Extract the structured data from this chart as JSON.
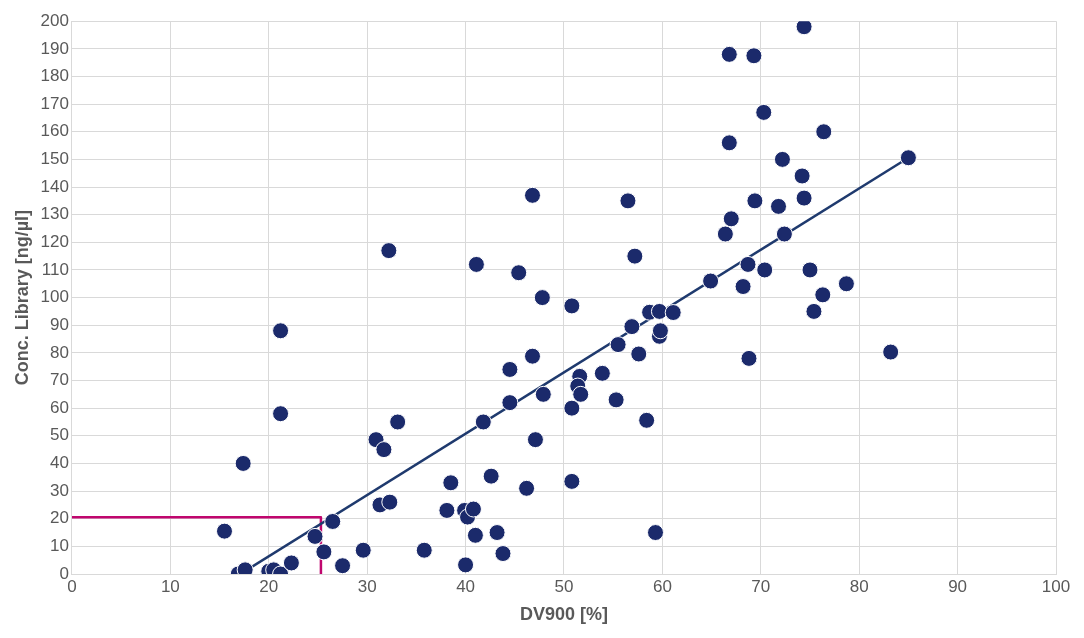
{
  "chart_data": {
    "type": "scatter",
    "xlabel": "DV900 [%]",
    "ylabel": "Conc. Library [ng/µl]",
    "xlim": [
      0,
      100
    ],
    "xticks": [
      0,
      10,
      20,
      30,
      40,
      50,
      60,
      70,
      80,
      90,
      100
    ],
    "ylim": [
      0,
      200
    ],
    "yticks": [
      0,
      10,
      20,
      30,
      40,
      50,
      60,
      70,
      80,
      90,
      100,
      110,
      120,
      130,
      140,
      150,
      160,
      170,
      180,
      190,
      200
    ],
    "grid": true,
    "legend": false,
    "marker": "circle",
    "series": [
      {
        "type": "scatter",
        "color": "#1b2a6b",
        "x": [
          16.9,
          17.6,
          17.4,
          15.5,
          21.2,
          21.2,
          20.0,
          20.5,
          21.2,
          22.3,
          24.7,
          25.6,
          26.5,
          27.5,
          29.6,
          30.9,
          31.3,
          31.7,
          32.3,
          32.2,
          33.1,
          35.8,
          38.5,
          38.1,
          39.9,
          40.2,
          40.8,
          40.0,
          41.0,
          41.1,
          41.8,
          42.6,
          43.2,
          43.8,
          44.5,
          44.5,
          45.4,
          46.2,
          46.8,
          46.8,
          47.1,
          47.9,
          47.8,
          50.8,
          50.8,
          50.8,
          51.6,
          51.4,
          51.7,
          53.9,
          55.3,
          55.5,
          56.5,
          56.9,
          57.2,
          57.6,
          58.4,
          58.7,
          59.3,
          59.7,
          59.7,
          59.8,
          61.1,
          64.9,
          66.4,
          66.8,
          67.0,
          66.8,
          68.2,
          68.7,
          68.8,
          69.3,
          69.4,
          70.3,
          70.4,
          71.8,
          72.2,
          72.4,
          74.2,
          74.4,
          74.4,
          75.0,
          75.4,
          76.3,
          76.4,
          78.7,
          83.2,
          85.0
        ],
        "values": [
          0,
          1.5,
          40,
          15.5,
          88,
          58,
          1,
          1.5,
          0,
          4,
          13.6,
          8,
          19,
          3,
          8.6,
          48.6,
          25,
          45,
          26,
          117,
          55,
          8.6,
          33,
          23,
          23,
          20.6,
          23.5,
          3.3,
          14,
          112,
          55,
          35.4,
          15,
          7.4,
          74,
          62,
          109,
          31,
          137,
          78.8,
          48.6,
          65,
          100,
          97,
          60,
          33.5,
          71.5,
          68,
          65,
          72.6,
          63,
          83,
          135,
          89.5,
          115,
          79.6,
          55.6,
          94.7,
          15,
          95,
          86,
          88,
          94.6,
          106,
          123,
          156,
          128.5,
          188,
          104,
          112,
          78,
          187.5,
          135,
          167,
          110,
          133,
          150,
          123,
          144,
          198,
          136,
          110,
          95,
          101,
          160,
          105,
          80.3,
          150.6
        ]
      },
      {
        "type": "line",
        "color": "#1f3a6e",
        "marker": "none",
        "x": [
          17.8,
          85.0
        ],
        "values": [
          1.5,
          150.6
        ]
      },
      {
        "type": "line",
        "color": "#c0066e",
        "marker": "none",
        "x": [
          0,
          25.3,
          25.3
        ],
        "values": [
          20.5,
          20.5,
          0
        ]
      }
    ]
  }
}
